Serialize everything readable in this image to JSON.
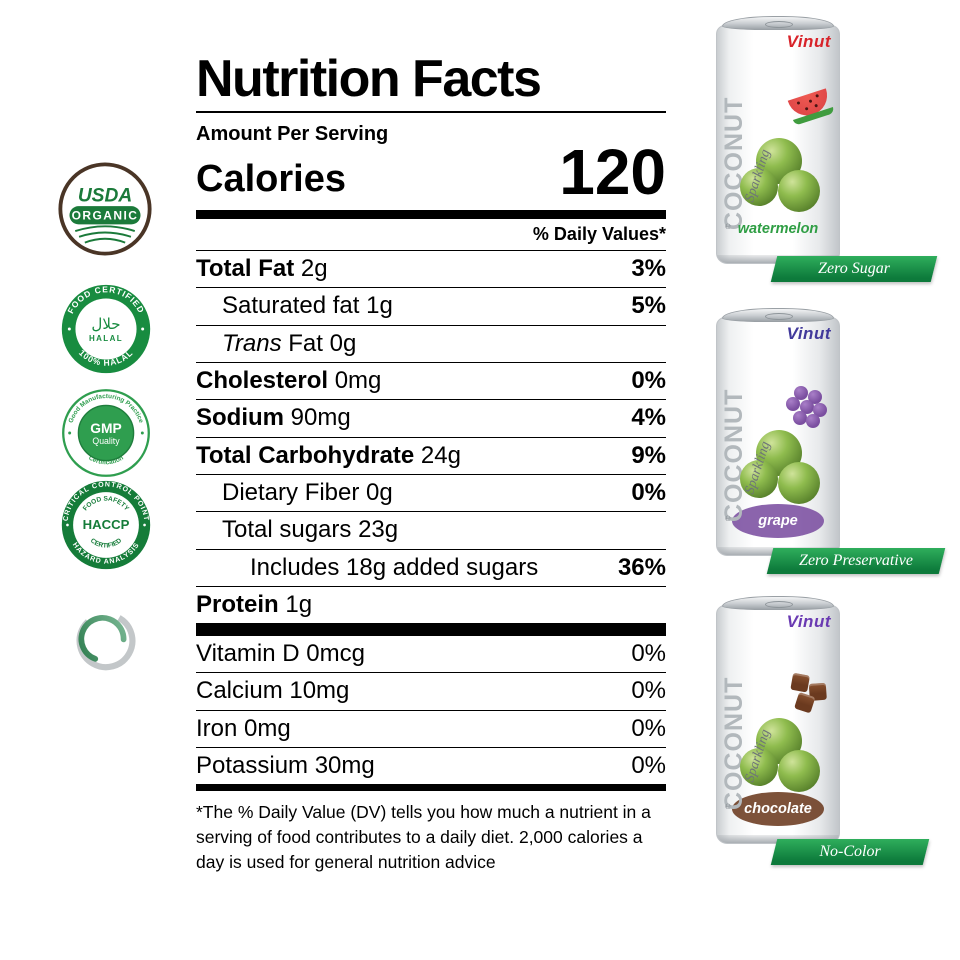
{
  "nutrition": {
    "title": "Nutrition Facts",
    "amount_per_serving": "Amount Per Serving",
    "calories_label": "Calories",
    "calories_value": "120",
    "daily_values_header": "% Daily Values*",
    "rows": [
      {
        "parts": [
          {
            "text": "Total Fat",
            "bold": true
          },
          {
            "text": " 2g"
          }
        ],
        "dv": "3%",
        "dv_bold": true,
        "indent": 0
      },
      {
        "parts": [
          {
            "text": "Saturated fat 1g"
          }
        ],
        "dv": "5%",
        "dv_bold": true,
        "indent": 1
      },
      {
        "parts": [
          {
            "text": "Trans",
            "italic": true
          },
          {
            "text": " Fat 0g"
          }
        ],
        "dv": "",
        "indent": 1
      },
      {
        "parts": [
          {
            "text": "Cholesterol",
            "bold": true
          },
          {
            "text": " 0mg"
          }
        ],
        "dv": "0%",
        "dv_bold": true,
        "indent": 0
      },
      {
        "parts": [
          {
            "text": "Sodium",
            "bold": true
          },
          {
            "text": " 90mg"
          }
        ],
        "dv": "4%",
        "dv_bold": true,
        "indent": 0
      },
      {
        "parts": [
          {
            "text": "Total Carbohydrate",
            "bold": true
          },
          {
            "text": " 24g"
          }
        ],
        "dv": "9%",
        "dv_bold": true,
        "indent": 0
      },
      {
        "parts": [
          {
            "text": "Dietary Fiber 0g"
          }
        ],
        "dv": "0%",
        "dv_bold": true,
        "indent": 1
      },
      {
        "parts": [
          {
            "text": "Total sugars 23g"
          }
        ],
        "dv": "",
        "indent": 1
      },
      {
        "parts": [
          {
            "text": "Includes 18g added sugars"
          }
        ],
        "dv": "36%",
        "dv_bold": true,
        "indent": 2
      },
      {
        "parts": [
          {
            "text": "Protein",
            "bold": true
          },
          {
            "text": " 1g"
          }
        ],
        "dv": "",
        "indent": 0
      }
    ],
    "vitamin_rows": [
      {
        "parts": [
          {
            "text": "Vitamin D 0mcg"
          }
        ],
        "dv": "0%",
        "indent": 0
      },
      {
        "parts": [
          {
            "text": "Calcium 10mg"
          }
        ],
        "dv": "0%",
        "indent": 0
      },
      {
        "parts": [
          {
            "text": "Iron 0mg"
          }
        ],
        "dv": "0%",
        "indent": 0
      },
      {
        "parts": [
          {
            "text": "Potassium 30mg"
          }
        ],
        "dv": "0%",
        "indent": 0
      }
    ],
    "footnote": "*The % Daily Value (DV) tells you how much a nutrient in a serving of food contributes to a daily diet. 2,000 calories a day is used for general nutrition advice"
  },
  "badges": [
    {
      "id": "usda-organic",
      "top_text": "USDA",
      "banner_text": "ORGANIC"
    },
    {
      "id": "halal-certified",
      "ring_top": "FOOD CERTIFIED",
      "ring_bottom": "100% HALAL",
      "center_arabic": "حلال",
      "center_text": "HALAL"
    },
    {
      "id": "gmp-quality",
      "ring_top": "Good Manufacturing Practice",
      "ring_bottom": "Certification",
      "center_main": "GMP",
      "center_sub": "Quality"
    },
    {
      "id": "haccp-certified",
      "ring_top": "CRITICAL CONTROL POINT",
      "ring_bottom": "HAZARD ANALYSIS",
      "inner_top": "FOOD SAFETY",
      "center_main": "HACCP",
      "inner_bottom": "CERTIFIED"
    },
    {
      "id": "natural-swirl-logo"
    }
  ],
  "colors": {
    "badge_green": "#1a8f42",
    "ribbon_green_light": "#2fae5c",
    "ribbon_green_dark": "#0d7a3b"
  },
  "cans": {
    "brand": "Vinut",
    "vertical_label": "COCONUT",
    "script_label": "Sparkling",
    "estimated_sign": "℮",
    "items": [
      {
        "flavor": "watermelon",
        "ribbon": "Zero Sugar",
        "brand_color": "#d8232a",
        "flavor_color": "#2f9e44",
        "accent_color": "#e04848",
        "label_bg": "transparent"
      },
      {
        "flavor": "grape",
        "ribbon": "Zero Preservative",
        "brand_color": "#41399b",
        "flavor_color": "#ffffff",
        "accent_color": "#7b4fa0",
        "label_bg": "#7b4fa0"
      },
      {
        "flavor": "chocolate",
        "ribbon": "No-Color",
        "brand_color": "#6a3ab2",
        "flavor_color": "#ffffff",
        "accent_color": "#6b3a1f",
        "label_bg": "#6b3a1f"
      }
    ]
  }
}
